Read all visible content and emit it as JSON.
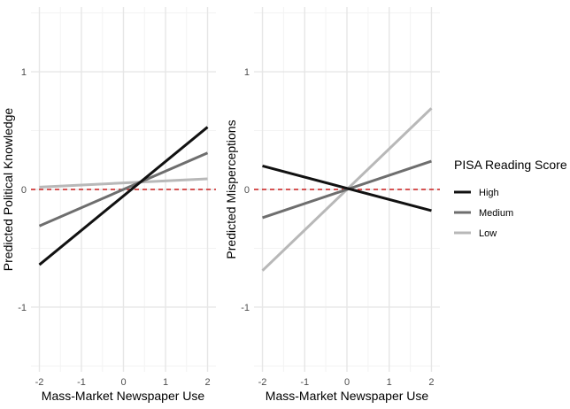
{
  "chart_data": [
    {
      "type": "line",
      "title": "",
      "xlabel": "Mass-Market Newspaper Use",
      "ylabel": "Predicted Political Knowledge",
      "xlim": [
        -2.2,
        2.2
      ],
      "ylim": [
        -1.55,
        1.55
      ],
      "xticks": [
        -2,
        -1,
        0,
        1,
        2
      ],
      "xtick_labels": [
        "-2",
        "-1",
        "0",
        "1",
        "2"
      ],
      "yticks": [
        -1,
        0,
        1
      ],
      "ytick_labels": [
        "-1",
        "0",
        "1"
      ],
      "reference_line": 0,
      "x": [
        -2,
        2
      ],
      "series": [
        {
          "name": "High",
          "values": [
            -0.64,
            0.53
          ]
        },
        {
          "name": "Medium",
          "values": [
            -0.31,
            0.31
          ]
        },
        {
          "name": "Low",
          "values": [
            0.02,
            0.09
          ]
        }
      ]
    },
    {
      "type": "line",
      "title": "",
      "xlabel": "Mass-Market Newspaper Use",
      "ylabel": "Predicted Misperceptions",
      "xlim": [
        -2.2,
        2.2
      ],
      "ylim": [
        -1.55,
        1.55
      ],
      "xticks": [
        -2,
        -1,
        0,
        1,
        2
      ],
      "xtick_labels": [
        "-2",
        "-1",
        "0",
        "1",
        "2"
      ],
      "yticks": [
        -1,
        0,
        1
      ],
      "ytick_labels": [
        "-1",
        "0",
        "1"
      ],
      "reference_line": 0,
      "x": [
        -2,
        2
      ],
      "series": [
        {
          "name": "High",
          "values": [
            0.2,
            -0.18
          ]
        },
        {
          "name": "Medium",
          "values": [
            -0.24,
            0.24
          ]
        },
        {
          "name": "Low",
          "values": [
            -0.69,
            0.69
          ]
        }
      ]
    }
  ],
  "legend": {
    "title": "PISA Reading Score",
    "items": [
      {
        "label": "High",
        "color": "#111111"
      },
      {
        "label": "Medium",
        "color": "#6e6e6e"
      },
      {
        "label": "Low",
        "color": "#b8b8b8"
      }
    ]
  },
  "colors": {
    "High": "#111111",
    "Medium": "#6e6e6e",
    "Low": "#b8b8b8",
    "reference": "#cc1f1f",
    "grid_major": "#e6e6e6",
    "grid_minor": "#f3f3f3"
  }
}
